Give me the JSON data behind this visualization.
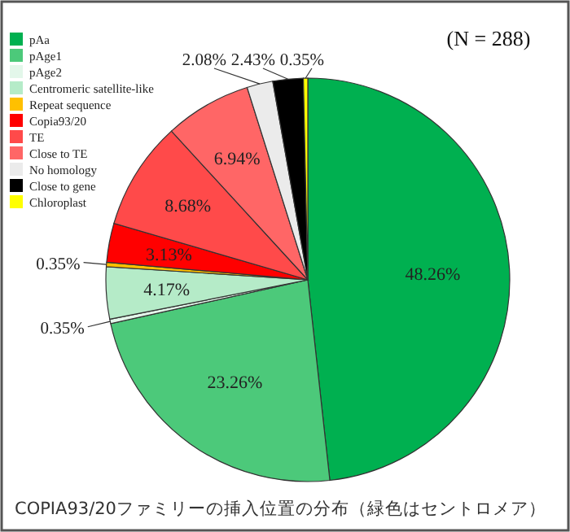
{
  "chart_data": {
    "type": "pie",
    "categories": [
      "pAa",
      "pAge1",
      "pAge2",
      "Centromeric satellite-like",
      "Repeat sequence",
      "Copia93/20",
      "TE",
      "Close to TE",
      "No homology",
      "Close to gene",
      "Chloroplast"
    ],
    "values": [
      48.26,
      23.26,
      0.35,
      4.17,
      0.35,
      3.13,
      8.68,
      6.94,
      2.08,
      2.43,
      0.35
    ],
    "colors": [
      "#00b050",
      "#4cc97a",
      "#e3f7ea",
      "#b5ebc8",
      "#ffc000",
      "#ff0000",
      "#ff4a4a",
      "#ff6666",
      "#ebebeb",
      "#000000",
      "#ffff00"
    ],
    "value_labels": [
      "48.26%",
      "23.26%",
      "0.35%",
      "4.17%",
      "0.35%",
      "3.13%",
      "8.68%",
      "6.94%",
      "2.08%",
      "2.43%",
      "0.35%"
    ],
    "legend": "top left",
    "annotations": [
      "(N = 288)",
      "COPIA93/20ファミリーの挿入位置の分布（緑色はセントロメア）"
    ]
  }
}
